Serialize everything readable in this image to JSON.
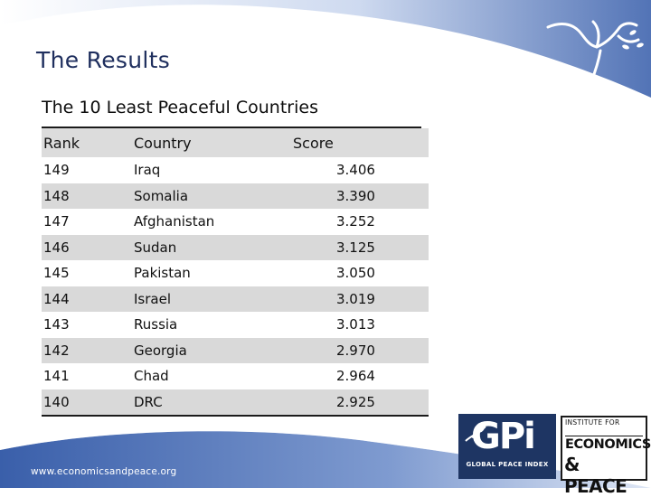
{
  "slide": {
    "title": "The Results",
    "table_title": "The 10 Least Peaceful Countries",
    "footer_url": "www.economicsandpeace.org"
  },
  "table": {
    "headers": [
      "Rank",
      "Country",
      "Score"
    ],
    "rows": [
      [
        "149",
        "Iraq",
        "3.406"
      ],
      [
        "148",
        "Somalia",
        "3.390"
      ],
      [
        "147",
        "Afghanistan",
        "3.252"
      ],
      [
        "146",
        "Sudan",
        "3.125"
      ],
      [
        "145",
        "Pakistan",
        "3.050"
      ],
      [
        "144",
        "Israel",
        "3.019"
      ],
      [
        "143",
        "Russia",
        "3.013"
      ],
      [
        "142",
        "Georgia",
        "2.970"
      ],
      [
        "141",
        "Chad",
        "2.964"
      ],
      [
        "140",
        "DRC",
        "2.925"
      ]
    ]
  },
  "logos": {
    "gpi_mark": "GPi",
    "gpi_caption": "GLOBAL PEACE INDEX",
    "iep_institute": "INSTITUTE FOR",
    "iep_economics": "ECONOMICS",
    "iep_peace": "& PEACE"
  },
  "colors": {
    "accent_blue": "#4a6fb5",
    "title_navy": "#1f2f5e",
    "row_shade": "#d9d9d9",
    "logo_navy": "#1e3563"
  }
}
